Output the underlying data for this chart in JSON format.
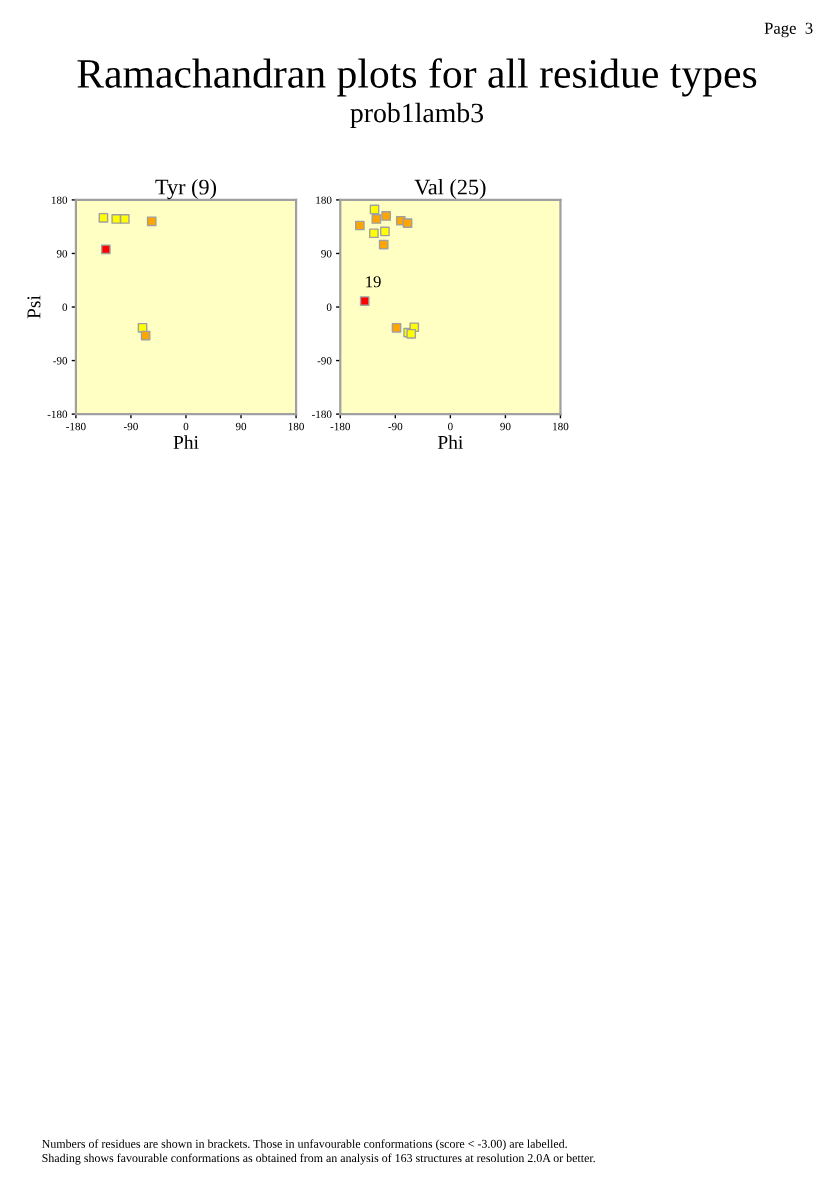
{
  "chart_data": [
    {
      "type": "other",
      "title": "Ramachandran plots for all residue types",
      "subtitle": "prob1lamb3",
      "annotations": [
        "Page  3",
        "Numbers of residues are shown in brackets. Those in unfavourable conformations (score < -3.00) are labelled.",
        "Shading shows favourable conformations as obtained from an analysis of 163 structures at resolution 2.0A or better."
      ]
    },
    {
      "type": "scatter",
      "title": "Tyr (9)",
      "xlabel": "Phi",
      "ylabel": "Psi",
      "marker": "square",
      "x": [
        -135,
        -114,
        -100,
        -56,
        -131,
        -71,
        -66
      ],
      "values": [
        150,
        148,
        148,
        144,
        97,
        -35,
        -48
      ],
      "colors": [
        "#ffff00",
        "#ffff00",
        "#ffff00",
        "#ffa500",
        "#ff0000",
        "#ffff00",
        "#ffa500"
      ],
      "xlim": [
        -180,
        180
      ],
      "ylim": [
        -180,
        180
      ],
      "xticks": [
        -180,
        -90,
        0,
        90,
        180
      ],
      "yticks": [
        -180,
        -90,
        0,
        90,
        180
      ],
      "grid": false
    },
    {
      "type": "scatter",
      "title": "Val (25)",
      "xlabel": "Phi",
      "marker": "square",
      "x": [
        -148,
        -124,
        -121,
        -105,
        -125,
        -107,
        -109,
        -81,
        -70,
        -140,
        -88,
        -69,
        -59,
        -64
      ],
      "values": [
        137,
        164,
        148,
        153,
        124,
        127,
        105,
        145,
        141,
        10,
        -35,
        -43,
        -34,
        -45
      ],
      "colors": [
        "#ffa500",
        "#ffff00",
        "#ffa500",
        "#ffa500",
        "#ffff00",
        "#ffff00",
        "#ffa500",
        "#ffa500",
        "#ffa500",
        "#ff0000",
        "#ffa500",
        "#ffff00",
        "#ffff00",
        "#ffff00"
      ],
      "xlim": [
        -180,
        180
      ],
      "ylim": [
        -180,
        180
      ],
      "xticks": [
        -180,
        -90,
        0,
        90,
        180
      ],
      "yticks": [
        -180,
        -90,
        0,
        90,
        180
      ],
      "grid": false,
      "annotations": [
        {
          "text": "19",
          "x": -140,
          "y": 10
        }
      ]
    }
  ]
}
